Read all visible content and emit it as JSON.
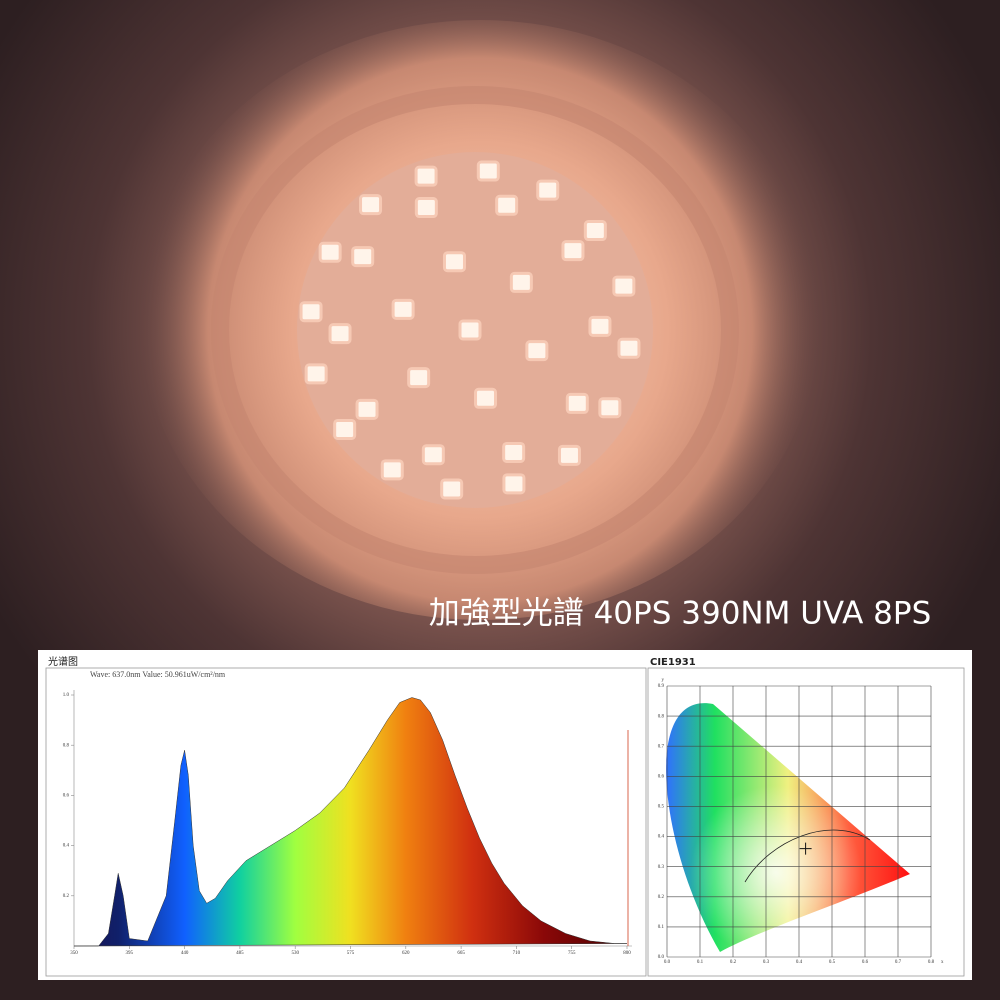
{
  "caption": "加強型光譜 40PS   390NM UVA 8PS",
  "spectrum": {
    "type": "area",
    "title": "光谱图",
    "subtitle": "Wave: 637.0nm Value: 50.961uW/cm²/nm",
    "x": [
      350,
      370,
      378,
      383,
      386,
      390,
      395,
      410,
      425,
      432,
      437,
      440,
      443,
      447,
      452,
      458,
      465,
      475,
      490,
      510,
      530,
      550,
      570,
      590,
      605,
      615,
      625,
      632,
      640,
      650,
      660,
      670,
      680,
      690,
      700,
      715,
      730,
      750,
      770,
      790,
      800
    ],
    "values": [
      0,
      0,
      0.05,
      0.2,
      0.29,
      0.2,
      0.03,
      0.02,
      0.2,
      0.5,
      0.72,
      0.78,
      0.68,
      0.4,
      0.22,
      0.17,
      0.19,
      0.26,
      0.34,
      0.4,
      0.46,
      0.53,
      0.63,
      0.78,
      0.9,
      0.97,
      0.99,
      0.98,
      0.93,
      0.82,
      0.68,
      0.55,
      0.43,
      0.33,
      0.25,
      0.16,
      0.1,
      0.05,
      0.02,
      0.01,
      0.01
    ],
    "xlim": [
      350,
      800
    ],
    "xticks": [
      350,
      395,
      440,
      485,
      530,
      575,
      620,
      665,
      710,
      755,
      800
    ],
    "ylim": [
      0,
      1
    ],
    "yticks": [
      0.2,
      0.4,
      0.6,
      0.8,
      {
        "value": 1,
        "label": "1.0"
      }
    ]
  },
  "cie": {
    "type": "scatter",
    "title": "CIE1931",
    "x_label": "x",
    "y_label": "y",
    "xlim": [
      0,
      0.8
    ],
    "ylim": [
      0,
      0.9
    ],
    "xticks": [
      {
        "value": 0,
        "label": "0.0"
      },
      0.1,
      0.2,
      0.3,
      0.4,
      0.5,
      0.6,
      0.7,
      0.8
    ],
    "yticks": [
      {
        "value": 0,
        "label": "0.0"
      },
      0.1,
      0.2,
      0.3,
      0.4,
      0.5,
      0.6,
      0.7,
      0.8,
      0.9
    ],
    "point": {
      "x": 0.42,
      "y": 0.36
    }
  }
}
